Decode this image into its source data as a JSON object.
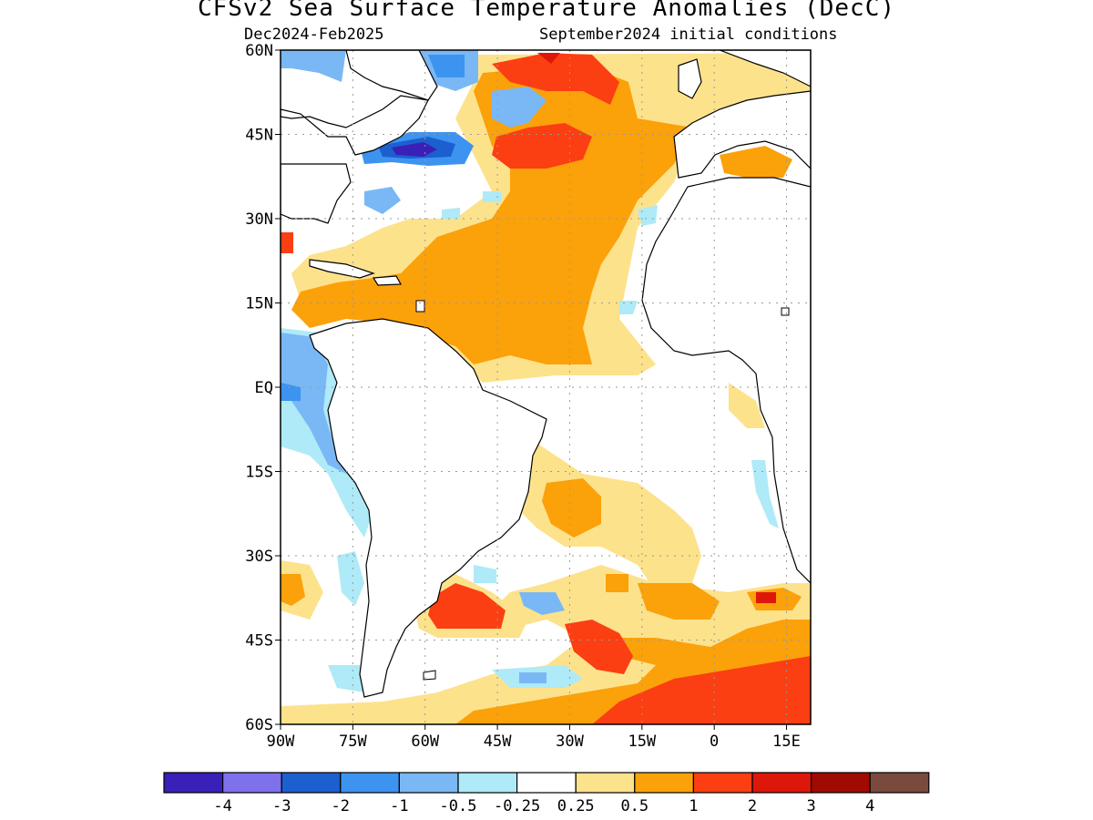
{
  "title": "CFSv2 Sea Surface Temperature Anomalies (DecC)",
  "subtitle_left": "Dec2024-Feb2025",
  "subtitle_right": "September2024 initial conditions",
  "map": {
    "lon_range": [
      -90,
      20
    ],
    "lat_range": [
      -60,
      60
    ],
    "lat_ticks": [
      {
        "value": 60,
        "label": "60N"
      },
      {
        "value": 45,
        "label": "45N"
      },
      {
        "value": 30,
        "label": "30N"
      },
      {
        "value": 15,
        "label": "15N"
      },
      {
        "value": 0,
        "label": "EQ"
      },
      {
        "value": -15,
        "label": "15S"
      },
      {
        "value": -30,
        "label": "30S"
      },
      {
        "value": -45,
        "label": "45S"
      },
      {
        "value": -60,
        "label": "60S"
      }
    ],
    "lon_ticks": [
      {
        "value": -90,
        "label": "90W"
      },
      {
        "value": -75,
        "label": "75W"
      },
      {
        "value": -60,
        "label": "60W"
      },
      {
        "value": -45,
        "label": "45W"
      },
      {
        "value": -30,
        "label": "30W"
      },
      {
        "value": -15,
        "label": "15W"
      },
      {
        "value": 0,
        "label": "0"
      },
      {
        "value": 15,
        "label": "15E"
      }
    ],
    "grid": true,
    "gridline_style": "dotted"
  },
  "legend": {
    "colors": [
      "#3a1fb8",
      "#7f70ec",
      "#1c5fcf",
      "#3d93f0",
      "#79b8f5",
      "#aeeaf8",
      "#ffffff",
      "#fde28c",
      "#fba10a",
      "#fb3f12",
      "#dd1709",
      "#a00a00",
      "#7a4a3e"
    ],
    "labels": [
      "-4",
      "-3",
      "-2",
      "-1",
      "-0.5",
      "-0.25",
      "0.25",
      "0.5",
      "1",
      "2",
      "3",
      "4"
    ]
  }
}
